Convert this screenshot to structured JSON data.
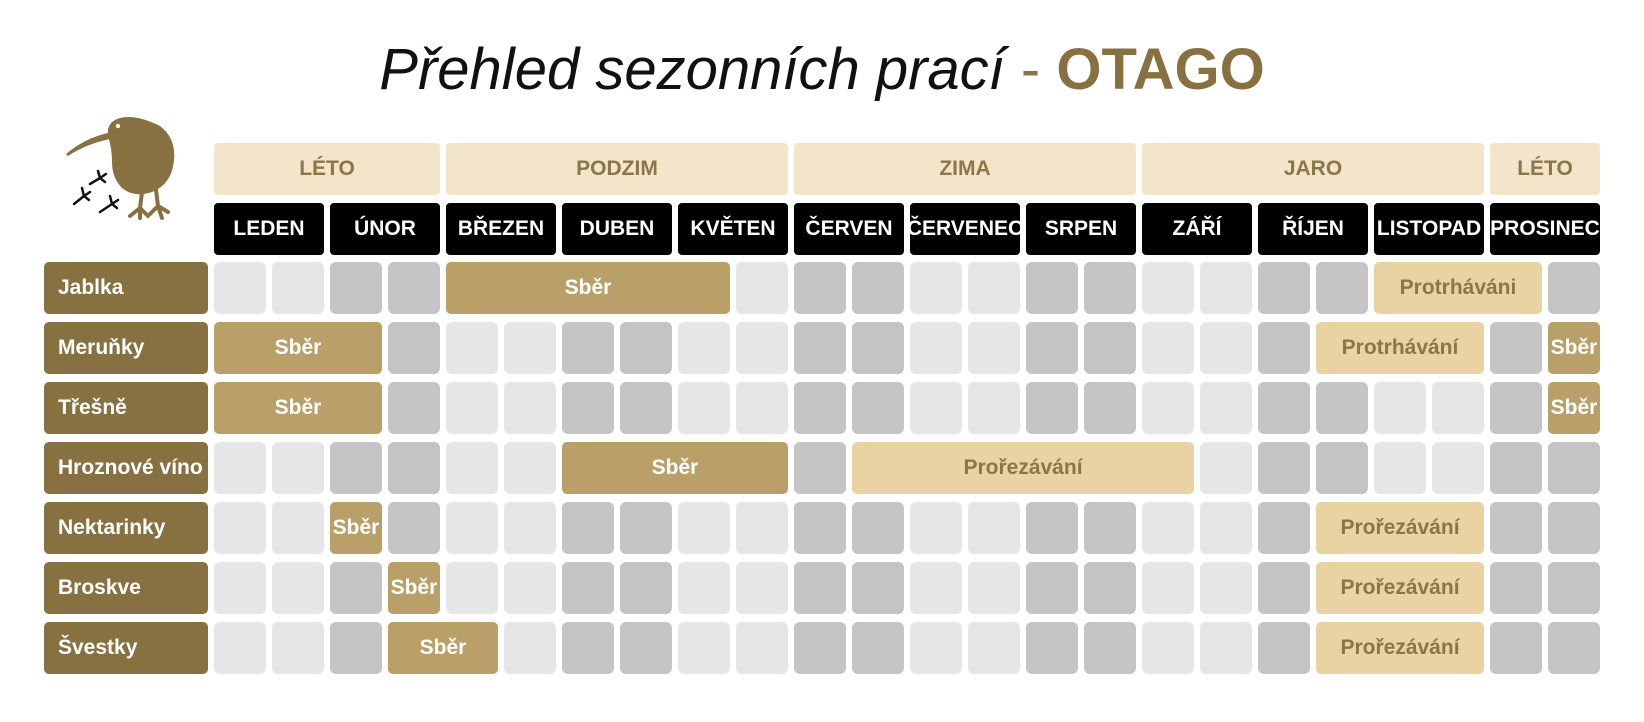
{
  "title": {
    "main": "Přehled sezonních prací",
    "separator": " - ",
    "region": "OTAGO"
  },
  "logo_icon": "kiwi-bird-with-footprints-icon",
  "seasons": [
    {
      "label": "LÉTO",
      "months": 2
    },
    {
      "label": "PODZIM",
      "months": 3
    },
    {
      "label": "ZIMA",
      "months": 3
    },
    {
      "label": "JARO",
      "months": 3
    },
    {
      "label": "LÉTO",
      "months": 1
    }
  ],
  "months": [
    "LEDEN",
    "ÚNOR",
    "BŘEZEN",
    "DUBEN",
    "KVĚTEN",
    "ČERVEN",
    "ČERVENEC",
    "SRPEN",
    "ZÁŘÍ",
    "ŘÍJEN",
    "LISTOPAD",
    "PROSINEC"
  ],
  "colors": {
    "accent": "#877140",
    "season_bg": "#f2e5c9",
    "harvest": "#b9a068",
    "pruning": "#e9d3a3",
    "cell_light": "#e6e6e6",
    "cell_dark": "#c4c4c4"
  },
  "rows": [
    {
      "label": "Jablka",
      "tasks": [
        {
          "label": "Sběr",
          "type": "harvest",
          "start": 5,
          "span": 5
        },
        {
          "label": "Protrháváni",
          "type": "pruning",
          "start": 21,
          "span": 3
        }
      ]
    },
    {
      "label": "Meruňky",
      "tasks": [
        {
          "label": "Sběr",
          "type": "harvest",
          "start": 1,
          "span": 3
        },
        {
          "label": "Protrhávání",
          "type": "pruning",
          "start": 20,
          "span": 3
        },
        {
          "label": "Sběr",
          "type": "harvest",
          "start": 24,
          "span": 1
        }
      ]
    },
    {
      "label": "Třešně",
      "tasks": [
        {
          "label": "Sběr",
          "type": "harvest",
          "start": 1,
          "span": 3
        },
        {
          "label": "Sběr",
          "type": "harvest",
          "start": 24,
          "span": 1
        }
      ]
    },
    {
      "label": "Hroznové víno",
      "tasks": [
        {
          "label": "Sběr",
          "type": "harvest",
          "start": 7,
          "span": 4
        },
        {
          "label": "Prořezávání",
          "type": "pruning",
          "start": 12,
          "span": 6
        }
      ]
    },
    {
      "label": "Nektarinky",
      "tasks": [
        {
          "label": "Sběr",
          "type": "harvest",
          "start": 3,
          "span": 1
        },
        {
          "label": "Prořezávání",
          "type": "pruning",
          "start": 20,
          "span": 3
        }
      ]
    },
    {
      "label": "Broskve",
      "tasks": [
        {
          "label": "Sběr",
          "type": "harvest",
          "start": 4,
          "span": 1
        },
        {
          "label": "Prořezávání",
          "type": "pruning",
          "start": 20,
          "span": 3
        }
      ]
    },
    {
      "label": "Švestky",
      "tasks": [
        {
          "label": "Sběr",
          "type": "harvest",
          "start": 4,
          "span": 2
        },
        {
          "label": "Prořezávání",
          "type": "pruning",
          "start": 20,
          "span": 3
        }
      ]
    }
  ]
}
